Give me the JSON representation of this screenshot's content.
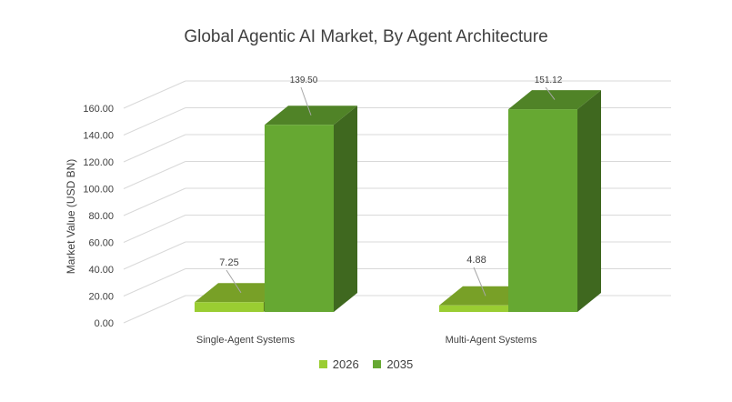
{
  "chart_data": {
    "type": "bar",
    "title": "Global Agentic AI Market, By Agent Architecture",
    "xlabel": "",
    "ylabel": "Market Value (USD BN)",
    "ylim": [
      0,
      160
    ],
    "yticks": [
      "0.00",
      "20.00",
      "40.00",
      "60.00",
      "80.00",
      "100.00",
      "120.00",
      "140.00",
      "160.00"
    ],
    "categories": [
      "Single-Agent Systems",
      "Multi-Agent Systems"
    ],
    "series": [
      {
        "name": "2026",
        "values": [
          7.25,
          4.88
        ],
        "labels": [
          "7.25",
          "4.88"
        ],
        "color": "#9acd32"
      },
      {
        "name": "2035",
        "values": [
          139.5,
          151.12
        ],
        "labels": [
          "139.50",
          "151.12"
        ],
        "color": "#66a832"
      }
    ],
    "grid": true,
    "legend": "bottom",
    "style": "3d-clustered-column"
  }
}
